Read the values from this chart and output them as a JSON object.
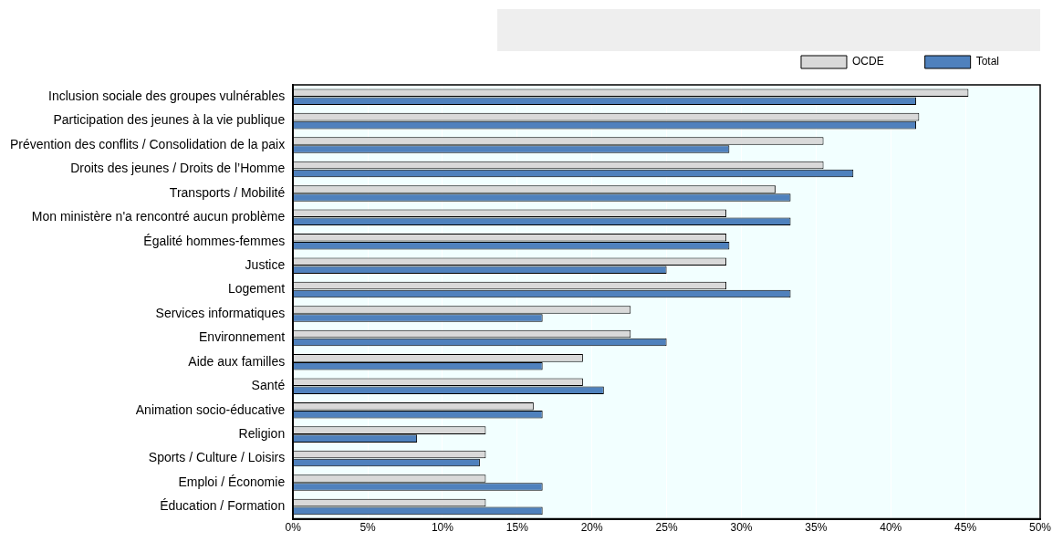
{
  "chart_data": {
    "type": "bar",
    "orientation": "horizontal",
    "categories": [
      "Inclusion sociale des groupes vulnérables",
      "Participation des jeunes à la vie publique",
      "Prévention des conflits / Consolidation de la paix",
      "Droits des jeunes / Droits de l’Homme",
      "Transports / Mobilité",
      "Mon ministère n'a rencontré aucun problème",
      "Égalité hommes-femmes",
      "Justice",
      "Logement",
      "Services informatiques",
      "Environnement",
      "Aide aux familles",
      "Santé",
      "Animation socio-éducative",
      "Religion",
      "Sports / Culture / Loisirs",
      "Emploi / Économie",
      "Éducation / Formation"
    ],
    "series": [
      {
        "name": "OCDE",
        "color": "#d9d9d9",
        "values": [
          45.2,
          41.9,
          35.5,
          35.5,
          32.3,
          29.0,
          29.0,
          29.0,
          29.0,
          22.6,
          22.6,
          19.4,
          19.4,
          16.1,
          12.9,
          12.9,
          12.9,
          12.9
        ]
      },
      {
        "name": "Total",
        "color": "#4f81bd",
        "values": [
          41.7,
          41.7,
          29.2,
          37.5,
          33.3,
          33.3,
          29.2,
          25.0,
          33.3,
          16.7,
          25.0,
          16.7,
          20.8,
          16.7,
          8.3,
          12.5,
          16.7,
          16.7
        ]
      }
    ],
    "xlim": [
      0,
      50
    ],
    "xticks": [
      {
        "value": 0,
        "label": "0%"
      },
      {
        "value": 5,
        "label": "5%"
      },
      {
        "value": 10,
        "label": "10%"
      },
      {
        "value": 15,
        "label": "15%"
      },
      {
        "value": 20,
        "label": "20%"
      },
      {
        "value": 25,
        "label": "25%"
      },
      {
        "value": 30,
        "label": "30%"
      },
      {
        "value": 35,
        "label": "35%"
      },
      {
        "value": 40,
        "label": "40%"
      },
      {
        "value": 45,
        "label": "45%"
      },
      {
        "value": 50,
        "label": "50%"
      }
    ],
    "grid": "x",
    "legend": "top right"
  }
}
